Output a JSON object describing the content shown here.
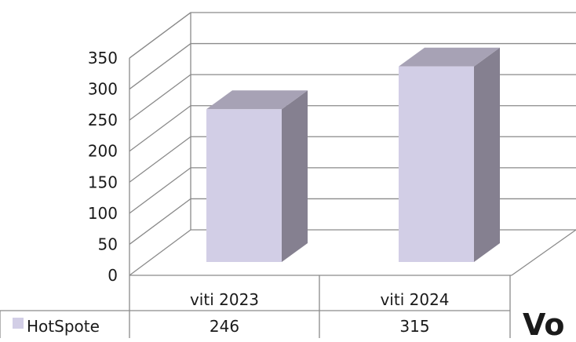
{
  "chart_data": {
    "type": "bar",
    "categories": [
      "viti 2023",
      "viti 2024"
    ],
    "series": [
      {
        "name": "HotSpote",
        "values": [
          246,
          315
        ]
      }
    ],
    "title": "",
    "xlabel": "",
    "ylabel": "",
    "ylim": [
      0,
      350
    ],
    "yticks": [
      0,
      50,
      100,
      150,
      200,
      250,
      300,
      350
    ],
    "grid": true,
    "legend": "data-table",
    "three_d": true,
    "colors": {
      "bar_front": "#d2cee6",
      "bar_side": "#858090",
      "bar_top": "#a7a2b5",
      "legend_key": "#d2cee6"
    }
  },
  "overflow_text": "Vo"
}
